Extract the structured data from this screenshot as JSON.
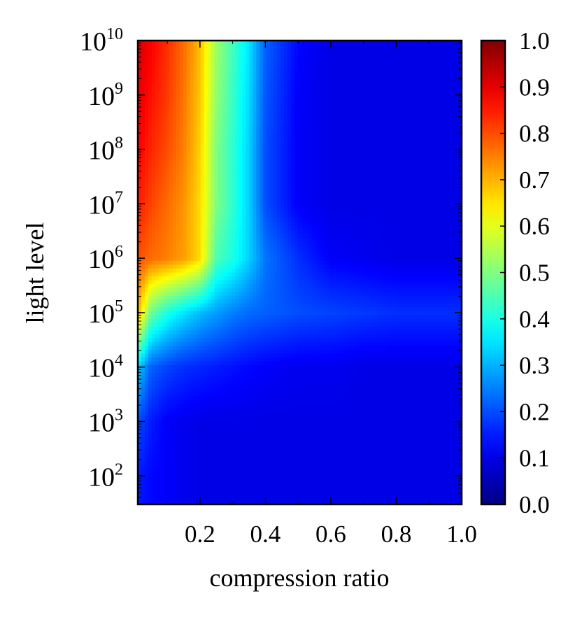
{
  "chart_data": {
    "type": "heatmap",
    "title": "",
    "xlabel": "compression ratio",
    "ylabel": "light level",
    "xlim": [
      0.01,
      1.0
    ],
    "ylim": [
      30,
      10000000000
    ],
    "y_scale": "log",
    "x_ticks": [
      "0.2",
      "0.4",
      "0.6",
      "0.8",
      "1.0"
    ],
    "x_tick_values": [
      0.2,
      0.4,
      0.6,
      0.8,
      1.0
    ],
    "y_tick_base": "10",
    "y_tick_exponents": [
      "2",
      "3",
      "4",
      "5",
      "6",
      "7",
      "8",
      "9",
      "10"
    ],
    "colorbar": {
      "colormap": "jet",
      "range": [
        0.0,
        1.0
      ],
      "tick_labels": [
        "0.0",
        "0.1",
        "0.2",
        "0.3",
        "0.4",
        "0.5",
        "0.6",
        "0.7",
        "0.8",
        "0.9",
        "1.0"
      ]
    },
    "grid": false,
    "x": [
      0.01,
      0.05,
      0.1,
      0.15,
      0.2,
      0.25,
      0.3,
      0.35,
      0.4,
      0.5,
      0.6,
      0.7,
      0.8,
      0.9,
      1.0
    ],
    "y": [
      100,
      1000,
      10000,
      100000,
      1000000,
      10000000,
      100000000,
      1000000000,
      10000000000
    ],
    "z": [
      [
        0.15,
        0.13,
        0.12,
        0.11,
        0.1,
        0.1,
        0.1,
        0.1,
        0.1,
        0.1,
        0.1,
        0.1,
        0.1,
        0.1,
        0.1
      ],
      [
        0.2,
        0.15,
        0.12,
        0.11,
        0.1,
        0.1,
        0.1,
        0.1,
        0.1,
        0.1,
        0.1,
        0.1,
        0.1,
        0.1,
        0.1
      ],
      [
        0.33,
        0.22,
        0.19,
        0.17,
        0.16,
        0.15,
        0.14,
        0.13,
        0.12,
        0.11,
        0.11,
        0.1,
        0.1,
        0.1,
        0.1
      ],
      [
        0.7,
        0.48,
        0.4,
        0.35,
        0.31,
        0.28,
        0.25,
        0.23,
        0.22,
        0.2,
        0.19,
        0.18,
        0.17,
        0.17,
        0.17
      ],
      [
        0.8,
        0.77,
        0.75,
        0.72,
        0.66,
        0.45,
        0.4,
        0.33,
        0.24,
        0.17,
        0.12,
        0.11,
        0.1,
        0.1,
        0.1
      ],
      [
        0.85,
        0.81,
        0.77,
        0.73,
        0.66,
        0.5,
        0.42,
        0.33,
        0.2,
        0.12,
        0.1,
        0.1,
        0.1,
        0.1,
        0.1
      ],
      [
        0.88,
        0.84,
        0.8,
        0.75,
        0.67,
        0.5,
        0.42,
        0.33,
        0.2,
        0.12,
        0.1,
        0.1,
        0.1,
        0.1,
        0.1
      ],
      [
        0.9,
        0.86,
        0.82,
        0.76,
        0.68,
        0.52,
        0.43,
        0.34,
        0.21,
        0.12,
        0.1,
        0.1,
        0.1,
        0.1,
        0.1
      ],
      [
        0.92,
        0.88,
        0.83,
        0.77,
        0.69,
        0.53,
        0.44,
        0.35,
        0.22,
        0.13,
        0.1,
        0.1,
        0.1,
        0.1,
        0.1
      ]
    ]
  }
}
